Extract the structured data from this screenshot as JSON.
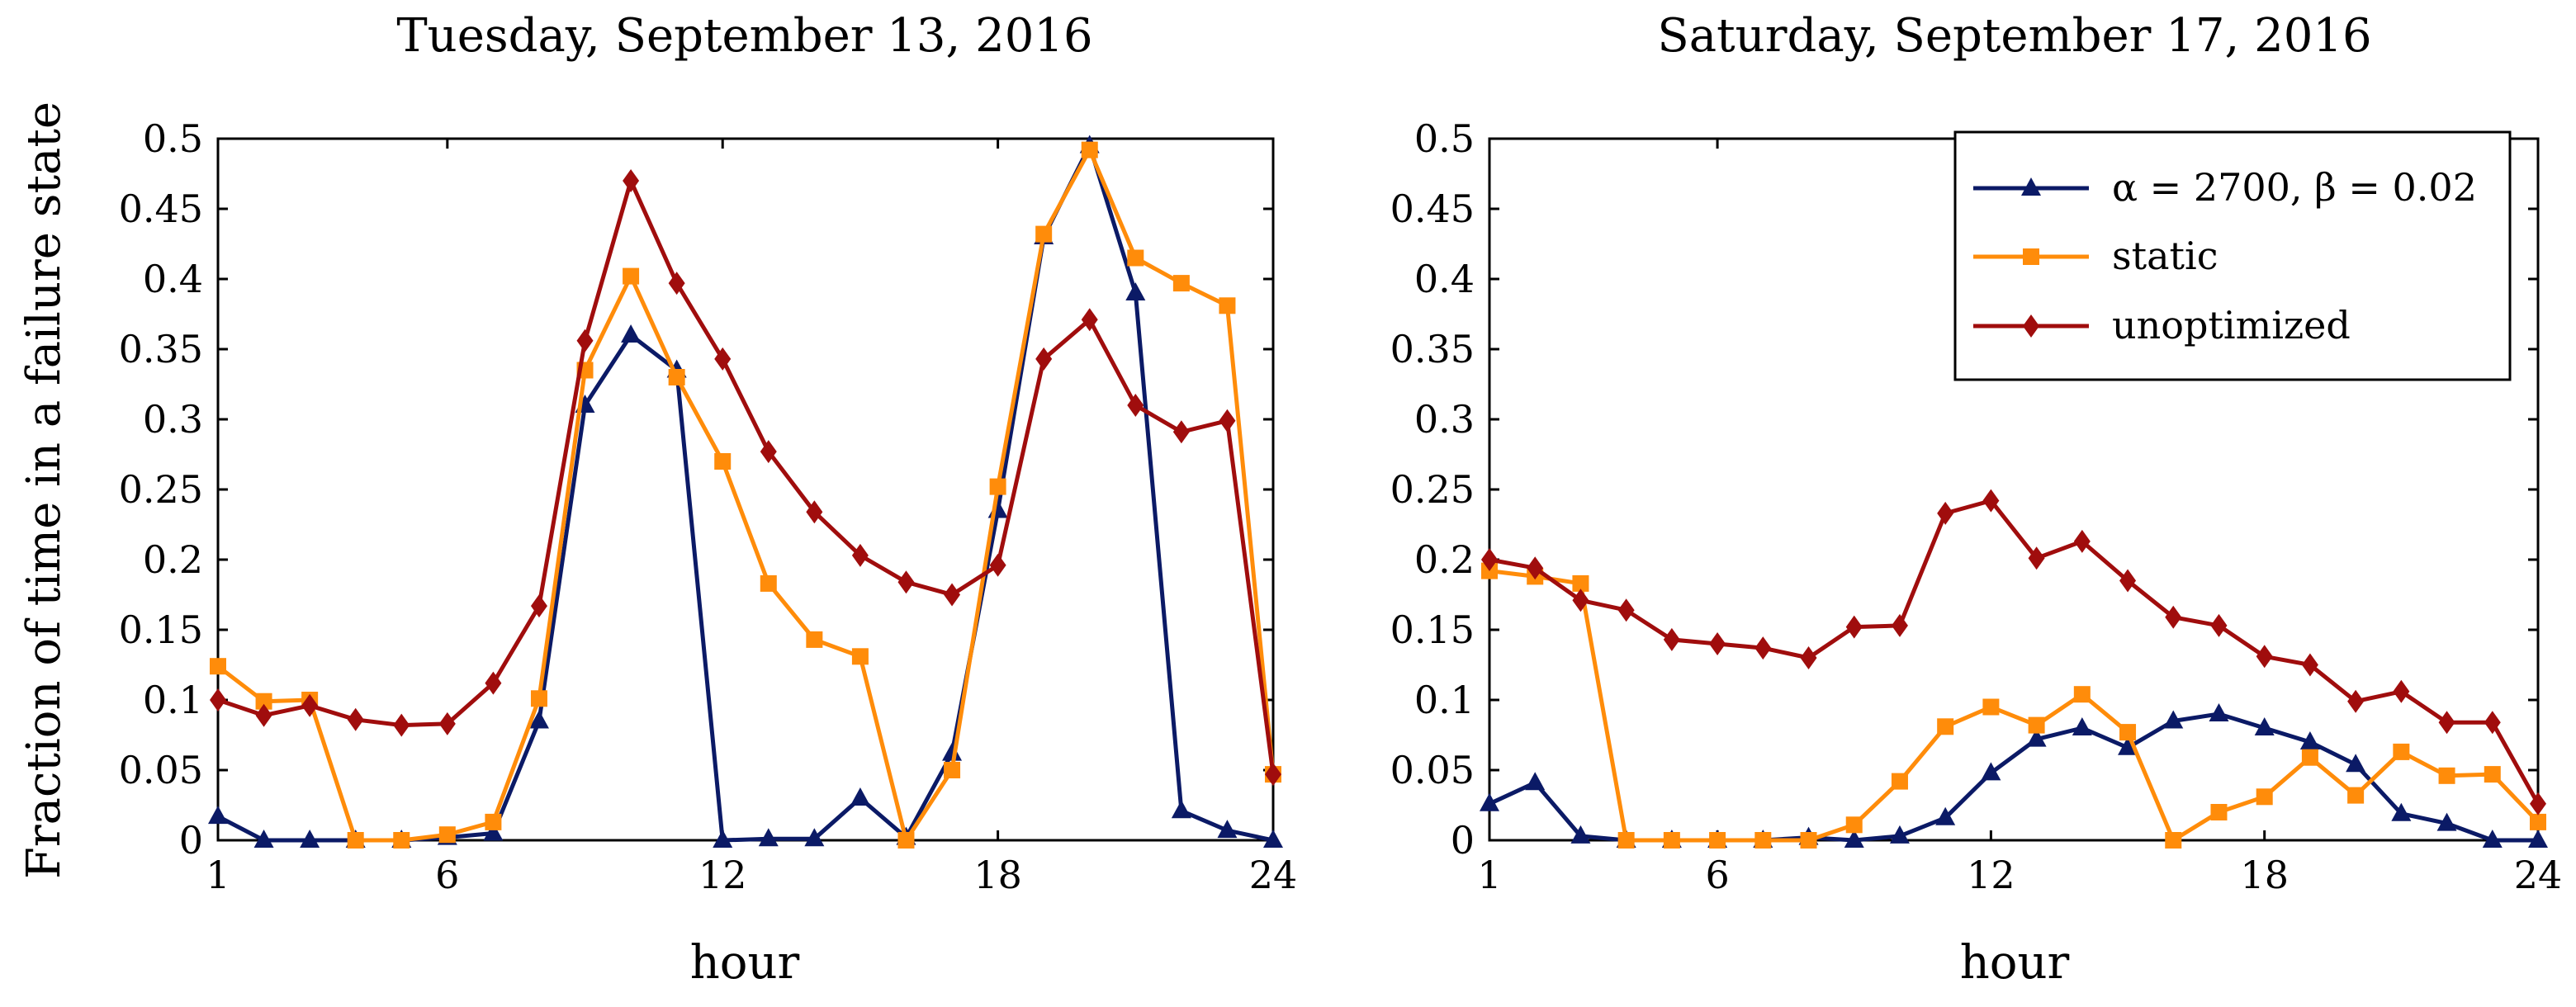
{
  "chart_data": [
    {
      "type": "line",
      "title": "Tuesday, September 13, 2016",
      "xlabel": "hour",
      "ylabel": "Fraction of time in a failure state",
      "xlim": [
        1,
        24
      ],
      "ylim": [
        0,
        0.5
      ],
      "xticks": [
        "1",
        "6",
        "12",
        "18",
        "24"
      ],
      "yticks": [
        "0",
        "0.05",
        "0.1",
        "0.15",
        "0.2",
        "0.25",
        "0.3",
        "0.35",
        "0.4",
        "0.45",
        "0.5"
      ],
      "x": [
        1,
        2,
        3,
        4,
        5,
        6,
        7,
        8,
        9,
        10,
        11,
        12,
        13,
        14,
        15,
        16,
        17,
        18,
        19,
        20,
        21,
        22,
        23,
        24
      ],
      "series": [
        {
          "name": "α = 2700, β = 0.02",
          "color": "#0b1a66",
          "marker": "triangle",
          "values": [
            0.017,
            0.0,
            0.0,
            0.0,
            0.0,
            0.002,
            0.005,
            0.085,
            0.31,
            0.36,
            0.335,
            0.0,
            0.001,
            0.001,
            0.03,
            0.002,
            0.062,
            0.235,
            0.43,
            0.495,
            0.39,
            0.021,
            0.007,
            0.0
          ]
        },
        {
          "name": "static",
          "color": "#ff8c0a",
          "marker": "square",
          "values": [
            0.124,
            0.099,
            0.1,
            0.0,
            0.0,
            0.004,
            0.013,
            0.101,
            0.335,
            0.402,
            0.33,
            0.27,
            0.183,
            0.143,
            0.131,
            0.0,
            0.05,
            0.252,
            0.432,
            0.492,
            0.415,
            0.397,
            0.381,
            0.047
          ]
        },
        {
          "name": "unoptimized",
          "color": "#a00d0d",
          "marker": "diamond",
          "values": [
            0.1,
            0.089,
            0.096,
            0.086,
            0.082,
            0.083,
            0.112,
            0.167,
            0.356,
            0.47,
            0.397,
            0.343,
            0.277,
            0.234,
            0.203,
            0.184,
            0.175,
            0.196,
            0.343,
            0.371,
            0.31,
            0.291,
            0.299,
            0.047
          ]
        }
      ]
    },
    {
      "type": "line",
      "title": "Saturday, September 17, 2016",
      "xlabel": "hour",
      "ylabel": "",
      "xlim": [
        1,
        24
      ],
      "ylim": [
        0,
        0.5
      ],
      "xticks": [
        "1",
        "6",
        "12",
        "18",
        "24"
      ],
      "yticks": [
        "0",
        "0.05",
        "0.1",
        "0.15",
        "0.2",
        "0.25",
        "0.3",
        "0.35",
        "0.4",
        "0.45",
        "0.5"
      ],
      "x": [
        1,
        2,
        3,
        4,
        5,
        6,
        7,
        8,
        9,
        10,
        11,
        12,
        13,
        14,
        15,
        16,
        17,
        18,
        19,
        20,
        21,
        22,
        23,
        24
      ],
      "legend": {
        "position": "top-right",
        "entries": [
          "α = 2700, β = 0.02",
          "static",
          "unoptimized"
        ]
      },
      "series": [
        {
          "name": "α = 2700, β = 0.02",
          "color": "#0b1a66",
          "marker": "triangle",
          "values": [
            0.026,
            0.041,
            0.003,
            0.0,
            0.0,
            0.0,
            0.0,
            0.002,
            0.0,
            0.003,
            0.016,
            0.048,
            0.072,
            0.08,
            0.066,
            0.085,
            0.09,
            0.08,
            0.07,
            0.054,
            0.019,
            0.012,
            0.0,
            0.0
          ]
        },
        {
          "name": "static",
          "color": "#ff8c0a",
          "marker": "square",
          "values": [
            0.192,
            0.188,
            0.183,
            0.0,
            0.0,
            0.0,
            0.0,
            0.0,
            0.011,
            0.042,
            0.081,
            0.095,
            0.082,
            0.104,
            0.077,
            0.0,
            0.02,
            0.031,
            0.059,
            0.032,
            0.063,
            0.046,
            0.047,
            0.013
          ]
        },
        {
          "name": "unoptimized",
          "color": "#a00d0d",
          "marker": "diamond",
          "values": [
            0.2,
            0.194,
            0.171,
            0.164,
            0.143,
            0.14,
            0.137,
            0.13,
            0.152,
            0.153,
            0.233,
            0.242,
            0.201,
            0.213,
            0.185,
            0.159,
            0.153,
            0.131,
            0.125,
            0.099,
            0.106,
            0.084,
            0.084,
            0.026
          ]
        }
      ]
    }
  ]
}
